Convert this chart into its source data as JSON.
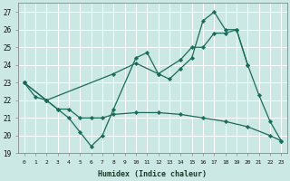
{
  "xlabel": "Humidex (Indice chaleur)",
  "bg_color": "#cce8e4",
  "grid_color": "#ffffff",
  "line_color": "#1a6b5a",
  "xlim": [
    -0.5,
    23.5
  ],
  "ylim": [
    19,
    27.5
  ],
  "yticks": [
    19,
    20,
    21,
    22,
    23,
    24,
    25,
    26,
    27
  ],
  "xticks": [
    0,
    1,
    2,
    3,
    4,
    5,
    6,
    7,
    8,
    9,
    10,
    11,
    12,
    13,
    14,
    15,
    16,
    17,
    18,
    19,
    20,
    21,
    22,
    23
  ],
  "series": [
    {
      "x": [
        0,
        1,
        2,
        3,
        4,
        5,
        6,
        7,
        8,
        10,
        11,
        12,
        13,
        14,
        15,
        16,
        17,
        18,
        19,
        20,
        21,
        22,
        23
      ],
      "y": [
        23.0,
        22.2,
        22.0,
        21.5,
        21.0,
        20.2,
        19.4,
        20.0,
        21.5,
        24.4,
        24.7,
        23.5,
        23.2,
        23.8,
        24.4,
        26.5,
        27.0,
        26.0,
        26.0,
        24.0,
        22.3,
        20.8,
        19.7
      ]
    },
    {
      "x": [
        0,
        2,
        8,
        10,
        12,
        14,
        15,
        16,
        17,
        18,
        19,
        20
      ],
      "y": [
        23.0,
        22.0,
        23.5,
        24.1,
        23.5,
        24.3,
        25.0,
        25.0,
        25.8,
        25.8,
        26.0,
        24.0
      ]
    },
    {
      "x": [
        0,
        2,
        3,
        4,
        5,
        6,
        7,
        8,
        10,
        12,
        14,
        16,
        18,
        20,
        22,
        23
      ],
      "y": [
        23.0,
        22.0,
        21.5,
        21.5,
        21.0,
        21.0,
        21.0,
        21.2,
        21.3,
        21.3,
        21.2,
        21.0,
        20.8,
        20.5,
        20.0,
        19.7
      ]
    }
  ]
}
